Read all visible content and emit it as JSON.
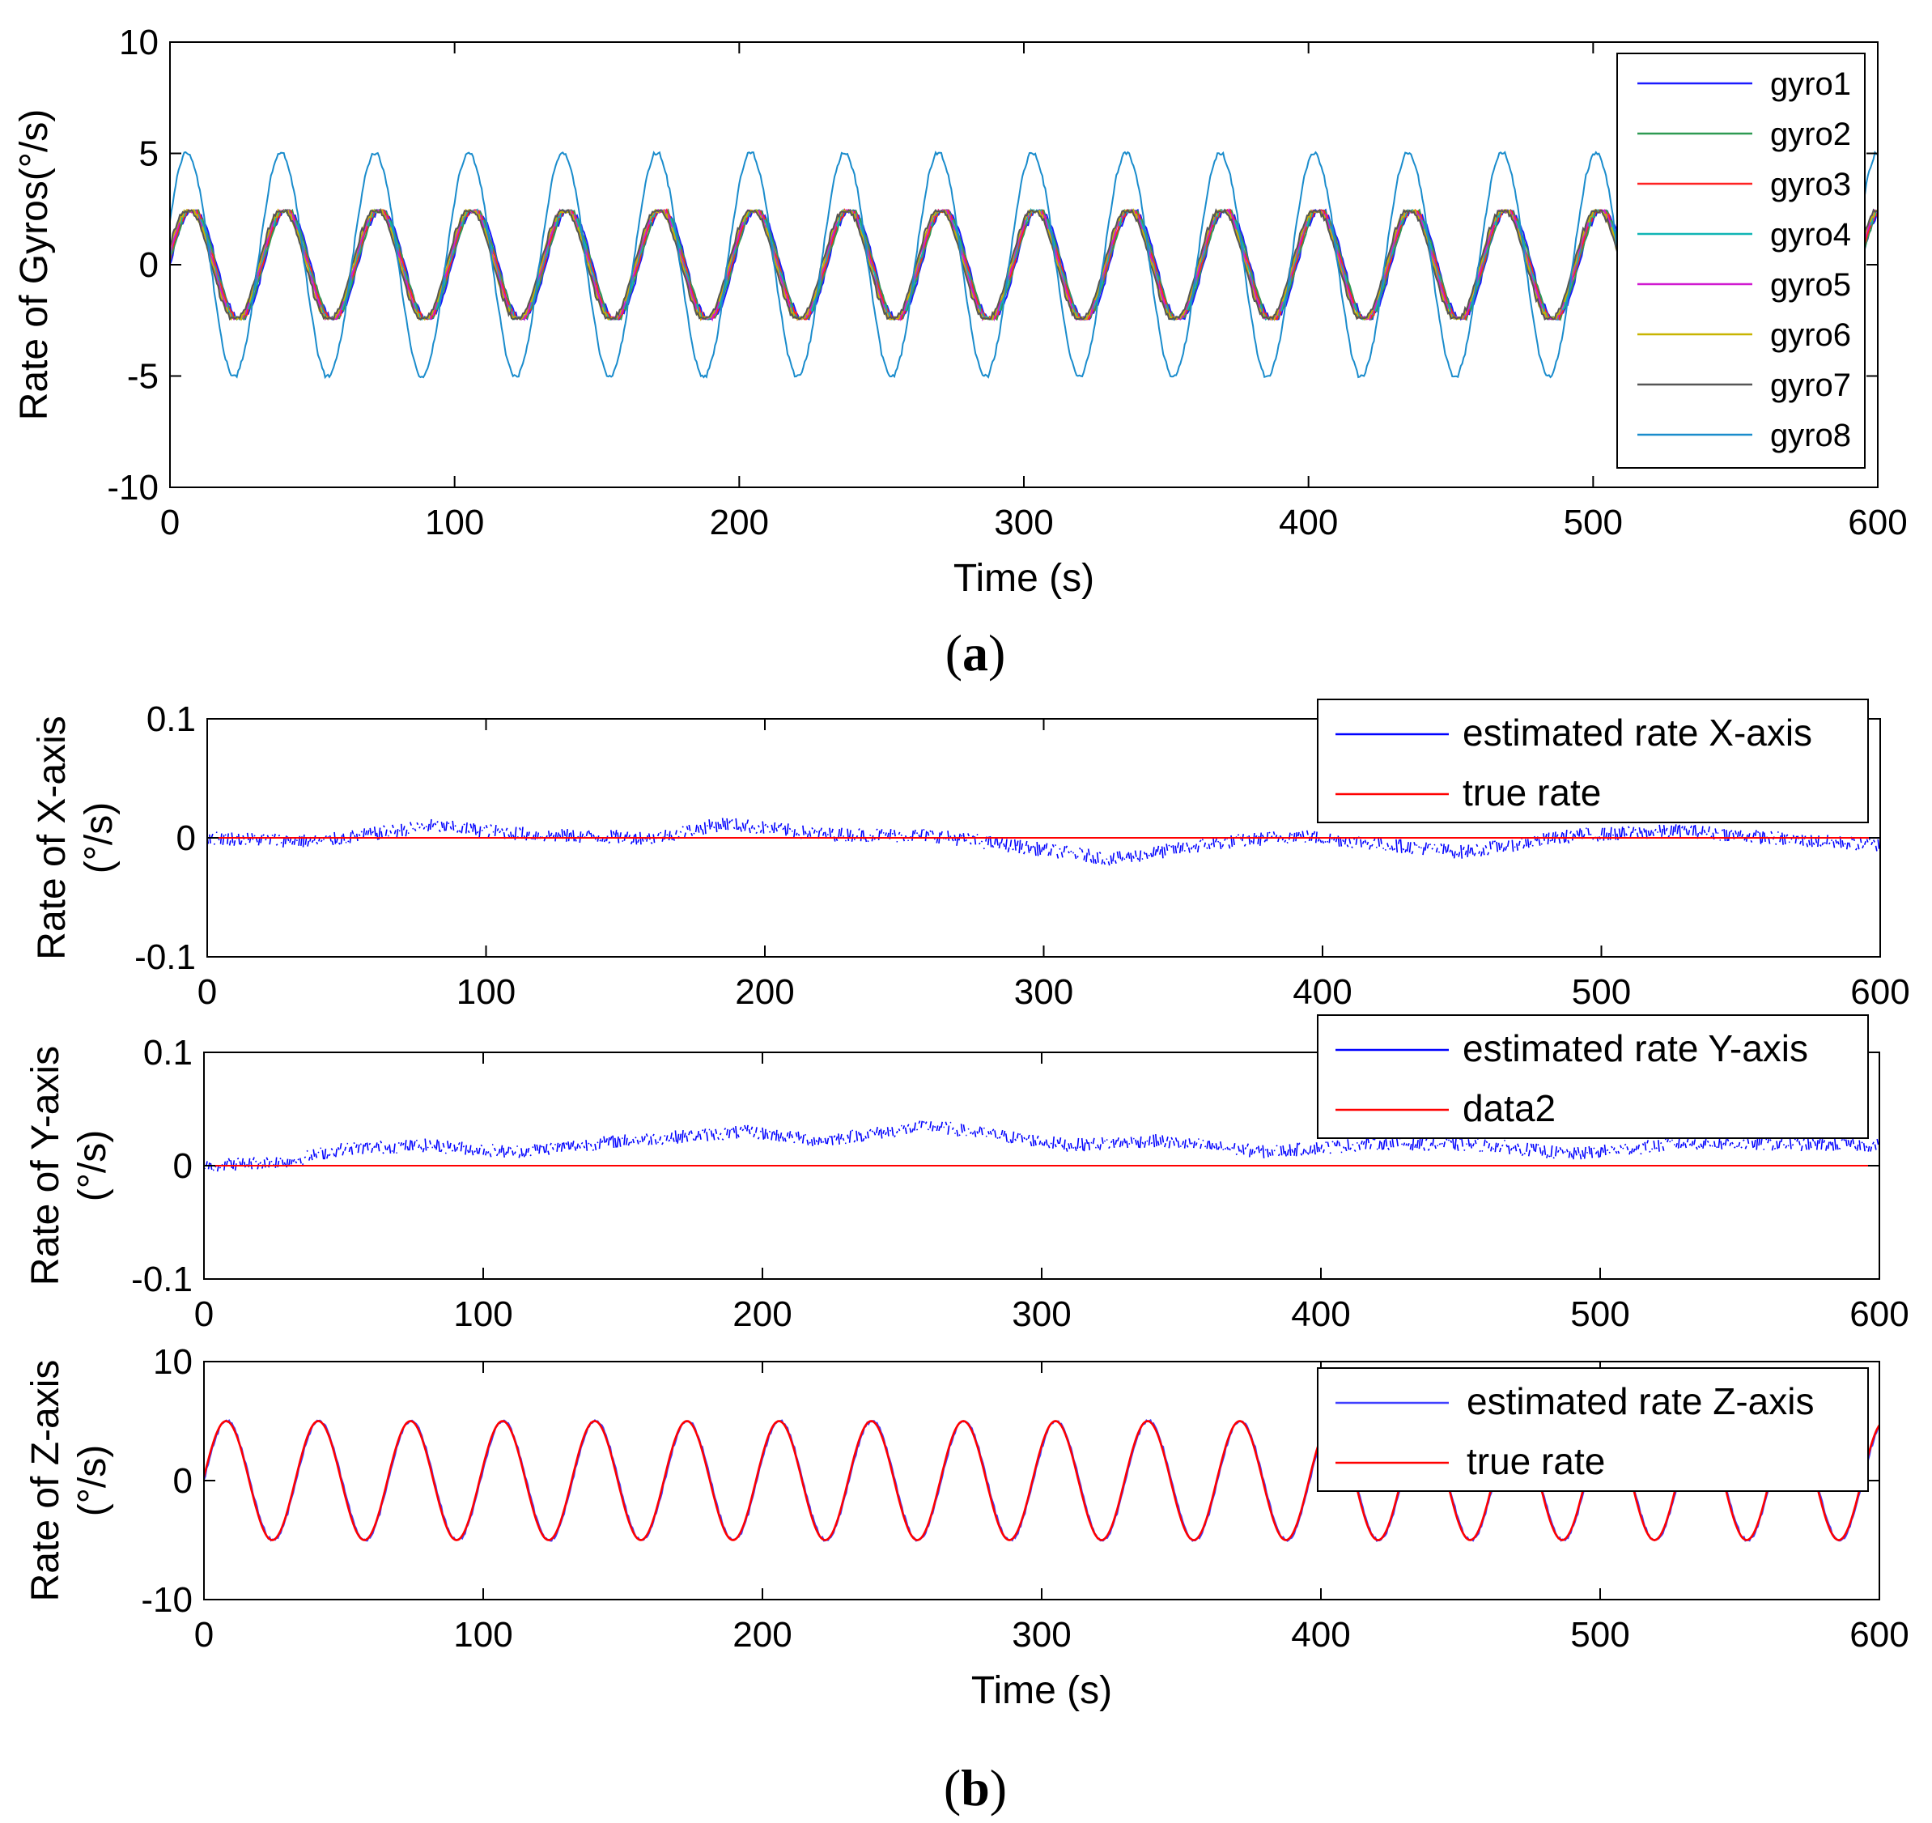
{
  "figure": {
    "panel_a_label": {
      "open": "(",
      "letter": "a",
      "close": ")"
    },
    "panel_b_label": {
      "open": "(",
      "letter": "b",
      "close": ")"
    }
  },
  "chart_data": [
    {
      "id": "gyros",
      "type": "line",
      "title": "",
      "xlabel": "Time (s)",
      "ylabel": "Rate of Gyros(°/s)",
      "xlim": [
        0,
        600
      ],
      "ylim": [
        -10,
        10
      ],
      "xticks": [
        0,
        100,
        200,
        300,
        400,
        500,
        600
      ],
      "yticks": [
        -10,
        -5,
        0,
        5,
        10
      ],
      "ytick_labels": [
        "-10",
        "-5",
        "0",
        "5",
        "10"
      ],
      "period_s": 33,
      "legend_position": "top-right",
      "series": [
        {
          "name": "gyro1",
          "amplitude": 2.5,
          "color": "#1a1aff"
        },
        {
          "name": "gyro2",
          "amplitude": 2.5,
          "color": "#2e9a52"
        },
        {
          "name": "gyro3",
          "amplitude": 2.5,
          "color": "#ff2222"
        },
        {
          "name": "gyro4",
          "amplitude": 2.5,
          "color": "#10b5b5"
        },
        {
          "name": "gyro5",
          "amplitude": 2.5,
          "color": "#d01ad0"
        },
        {
          "name": "gyro6",
          "amplitude": 2.5,
          "color": "#c8b400"
        },
        {
          "name": "gyro7",
          "amplitude": 2.5,
          "color": "#555555"
        },
        {
          "name": "gyro8",
          "amplitude": 5.0,
          "color": "#1a8ccc"
        }
      ]
    },
    {
      "id": "x-axis",
      "type": "line",
      "xlabel": "",
      "ylabel": [
        "Rate of X-axis",
        "(°/s)"
      ],
      "xlim": [
        0,
        600
      ],
      "ylim": [
        -0.1,
        0.1
      ],
      "xticks": [
        0,
        100,
        200,
        300,
        400,
        500,
        600
      ],
      "yticks": [
        -0.1,
        0,
        0.1
      ],
      "ytick_labels": [
        "-0.1",
        "0",
        "0.1"
      ],
      "legend_position": "top-right",
      "series": [
        {
          "name": "estimated rate X-axis",
          "color": "#0000ff",
          "trend_x": [
            0,
            40,
            80,
            120,
            160,
            185,
            220,
            260,
            300,
            325,
            360,
            390,
            420,
            450,
            490,
            530,
            570,
            600
          ],
          "trend_y": [
            0.0,
            -0.003,
            0.01,
            0.002,
            0.0,
            0.012,
            0.003,
            0.002,
            -0.01,
            -0.018,
            -0.005,
            0.002,
            -0.005,
            -0.012,
            0.002,
            0.006,
            -0.002,
            -0.006
          ],
          "noise": 0.006
        },
        {
          "name": "true rate",
          "color": "#ff0000",
          "value": 0
        }
      ]
    },
    {
      "id": "y-axis",
      "type": "line",
      "xlabel": "",
      "ylabel": [
        "Rate of Y-axis",
        "(°/s)"
      ],
      "xlim": [
        0,
        600
      ],
      "ylim": [
        -0.1,
        0.1
      ],
      "xticks": [
        0,
        100,
        200,
        300,
        400,
        500,
        600
      ],
      "yticks": [
        -0.1,
        0,
        0.1
      ],
      "ytick_labels": [
        "-0.1",
        "0",
        "0.1"
      ],
      "legend_position": "top-right",
      "series": [
        {
          "name": "estimated rate Y-axis",
          "color": "#0000ff",
          "trend_x": [
            0,
            30,
            50,
            80,
            110,
            150,
            195,
            220,
            260,
            280,
            310,
            340,
            380,
            420,
            460,
            490,
            530,
            600
          ],
          "trend_y": [
            0.0,
            0.004,
            0.015,
            0.018,
            0.012,
            0.022,
            0.03,
            0.022,
            0.035,
            0.028,
            0.018,
            0.022,
            0.012,
            0.02,
            0.018,
            0.01,
            0.02,
            0.018
          ],
          "noise": 0.006
        },
        {
          "name": "data2",
          "color": "#ff0000",
          "value": 0
        }
      ]
    },
    {
      "id": "z-axis",
      "type": "line",
      "xlabel": "Time (s)",
      "ylabel": [
        "Rate of Z-axis",
        "(°/s)"
      ],
      "xlim": [
        0,
        600
      ],
      "ylim": [
        -10,
        10
      ],
      "xticks": [
        0,
        100,
        200,
        300,
        400,
        500,
        600
      ],
      "yticks": [
        -10,
        0,
        10
      ],
      "ytick_labels": [
        "-10",
        "0",
        "10"
      ],
      "period_s": 33,
      "legend_position": "top-right",
      "series": [
        {
          "name": "estimated rate Z-axis",
          "color": "#4040ff",
          "amplitude": 5.0
        },
        {
          "name": "true rate",
          "color": "#ff0000",
          "amplitude": 5.0
        }
      ]
    }
  ]
}
